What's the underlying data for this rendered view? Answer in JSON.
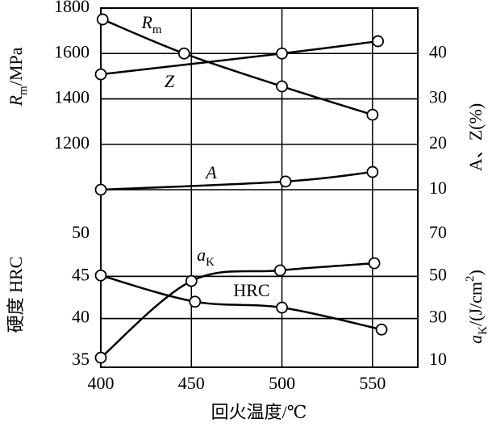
{
  "chart_data": [
    {
      "type": "line",
      "xlim": [
        400,
        575
      ],
      "xticks": [
        400,
        450,
        500,
        550
      ],
      "ylim": [
        1000,
        1800
      ],
      "yticks": [
        1200,
        1400,
        1600,
        1800
      ],
      "y2lim": [
        10,
        50
      ],
      "y2ticks": [
        10,
        20,
        30,
        40
      ],
      "ylabel": [
        "R",
        "m",
        "/MPa"
      ],
      "y2label": "A、Z(%)",
      "grid": true,
      "series": [
        {
          "name": "R",
          "name_sub": "m",
          "color": "#000000",
          "x": [
            401,
            446,
            500,
            550
          ],
          "values": [
            1750,
            1600,
            1455,
            1330
          ]
        },
        {
          "name": "Z",
          "color": "#000000",
          "axis": "y2",
          "x": [
            400,
            500,
            553
          ],
          "values": [
            35.4,
            40,
            42.7
          ]
        },
        {
          "name": "A",
          "color": "#000000",
          "axis": "y2",
          "x": [
            400,
            502,
            550
          ],
          "values": [
            10,
            11.8,
            13.9
          ]
        }
      ]
    },
    {
      "type": "line",
      "xlim": [
        400,
        575
      ],
      "xticks": [
        400,
        450,
        500,
        550
      ],
      "xlabel": "回火温度/℃",
      "ylim": [
        35,
        50
      ],
      "yticks": [
        35,
        40,
        45,
        50
      ],
      "y2lim": [
        10,
        70
      ],
      "y2ticks": [
        10,
        30,
        50,
        70
      ],
      "ylabel": [
        "硬度  HRC"
      ],
      "y2label": [
        "a",
        "K",
        "/(J/cm",
        "2",
        ")"
      ],
      "grid": true,
      "series": [
        {
          "name": "a",
          "name_sub": "K",
          "color": "#000000",
          "axis": "y2",
          "x": [
            400,
            450,
            499,
            551
          ],
          "values": [
            11.5,
            47.8,
            52.8,
            56.2
          ]
        },
        {
          "name": "HRC",
          "color": "#000000",
          "x": [
            400,
            452,
            500,
            555
          ],
          "values": [
            45.1,
            42,
            41.3,
            38.7
          ]
        }
      ]
    }
  ]
}
